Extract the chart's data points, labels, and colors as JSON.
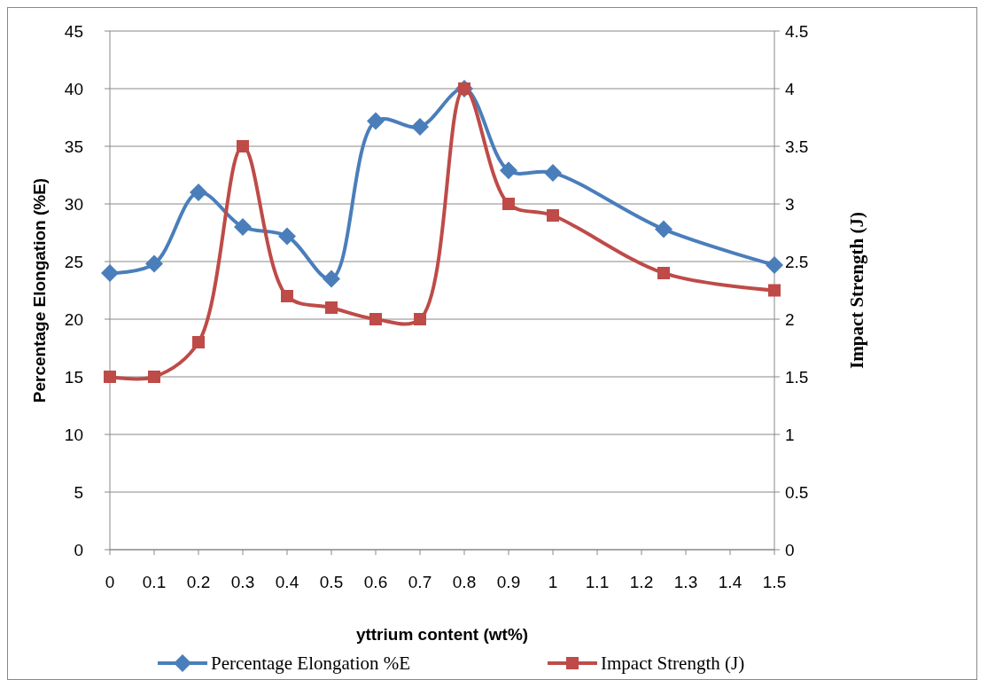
{
  "chart_data": {
    "type": "line",
    "xlabel": "yttrium content (wt%)",
    "ylabel": "Percentage Elongation (%E)",
    "y2label": "Impact Strength (J)",
    "x": [
      0,
      0.1,
      0.2,
      0.3,
      0.4,
      0.5,
      0.6,
      0.7,
      0.8,
      0.9,
      1,
      1.25,
      1.5
    ],
    "xlim": [
      0,
      1.5
    ],
    "xticks": [
      0,
      0.1,
      0.2,
      0.3,
      0.4,
      0.5,
      0.6,
      0.7,
      0.8,
      0.9,
      1,
      1.1,
      1.2,
      1.3,
      1.4,
      1.5
    ],
    "ylim": [
      0,
      45
    ],
    "yticks": [
      0,
      5,
      10,
      15,
      20,
      25,
      30,
      35,
      40,
      45
    ],
    "y2lim": [
      0,
      4.5
    ],
    "y2ticks": [
      0,
      0.5,
      1,
      1.5,
      2,
      2.5,
      3,
      3.5,
      4,
      4.5
    ],
    "grid": "y",
    "legend": "bottom",
    "series": [
      {
        "name": "Percentage Elongation %E",
        "color": "#4a7ebb",
        "marker": "diamond",
        "values": [
          24,
          24.8,
          31,
          28,
          27.2,
          23.5,
          37.2,
          36.7,
          40,
          32.9,
          32.7,
          27.8,
          24.7
        ]
      },
      {
        "name": "Impact Strength (J)",
        "color": "#be4b48",
        "marker": "square",
        "axis": "y2",
        "values": [
          1.5,
          1.5,
          1.8,
          3.5,
          2.2,
          2.1,
          2.0,
          2.0,
          4.0,
          3.0,
          2.9,
          2.4,
          2.25
        ]
      }
    ]
  }
}
